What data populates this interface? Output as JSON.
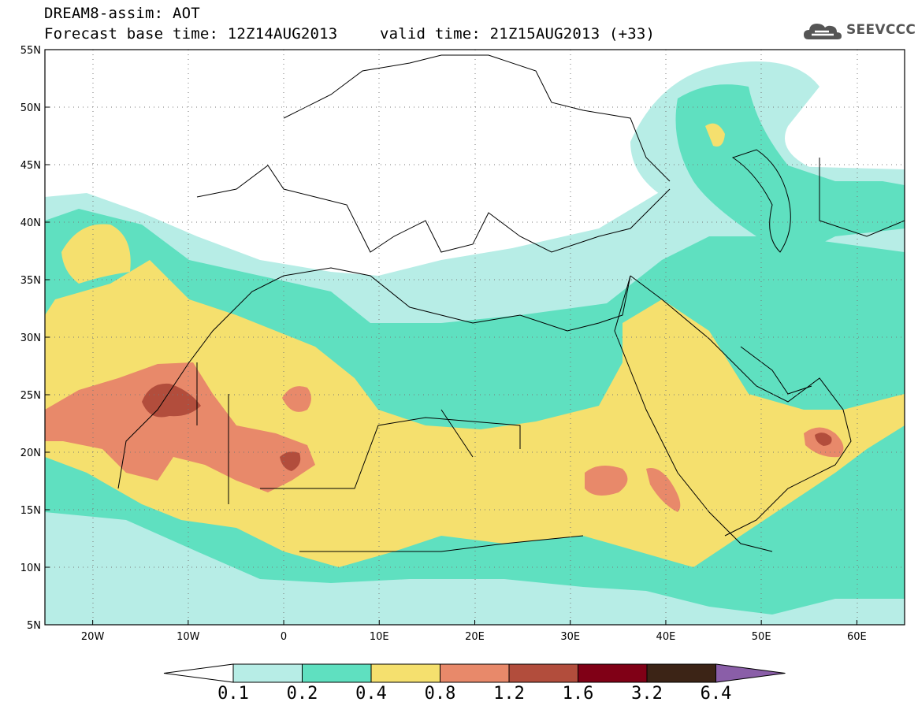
{
  "title": {
    "line1": "DREAM8-assim: AOT",
    "base_time": "Forecast base time: 12Z14AUG2013",
    "valid_time": "valid time: 21Z15AUG2013 (+33)"
  },
  "logo": {
    "text": "SEEVCCC",
    "icon": "cloud-icon"
  },
  "map": {
    "lon_range": [
      -25,
      65
    ],
    "lat_range": [
      5,
      55
    ],
    "lat_ticks": [
      "5N",
      "10N",
      "15N",
      "20N",
      "25N",
      "30N",
      "35N",
      "40N",
      "45N",
      "50N",
      "55N"
    ],
    "lon_ticks": [
      "20W",
      "10W",
      "0",
      "10E",
      "20E",
      "30E",
      "40E",
      "50E",
      "60E"
    ],
    "grid": "dotted"
  },
  "legend": {
    "labels": [
      "0.1",
      "0.2",
      "0.4",
      "0.8",
      "1.2",
      "1.6",
      "3.2",
      "6.4"
    ],
    "colors": [
      "#ffffff",
      "#b7ede6",
      "#5fe0c0",
      "#f5e06e",
      "#e8896a",
      "#b24d3c",
      "#800016",
      "#3c2416",
      "#8a5ea8"
    ]
  }
}
